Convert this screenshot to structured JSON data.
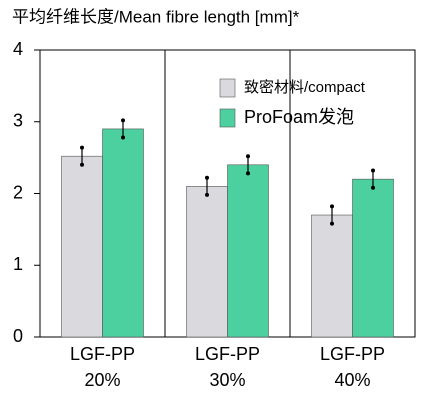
{
  "chart_data": {
    "type": "bar",
    "title": "平均纤维长度/Mean fibre length [mm]*",
    "categories": [
      "LGF-PP 20%",
      "LGF-PP 30%",
      "LGF-PP 40%"
    ],
    "series": [
      {
        "name": "致密材料/compact",
        "color": "#d9d9de",
        "values": [
          2.52,
          2.1,
          1.7
        ],
        "errors": [
          0.12,
          0.12,
          0.12
        ]
      },
      {
        "name": "ProFoam发泡",
        "color": "#4dd0a0",
        "values": [
          2.9,
          2.4,
          2.2
        ],
        "errors": [
          0.12,
          0.12,
          0.12
        ]
      }
    ],
    "ylim": [
      0,
      4
    ],
    "yticks": [
      0,
      1,
      2,
      3,
      4
    ],
    "legend": "upper right"
  }
}
